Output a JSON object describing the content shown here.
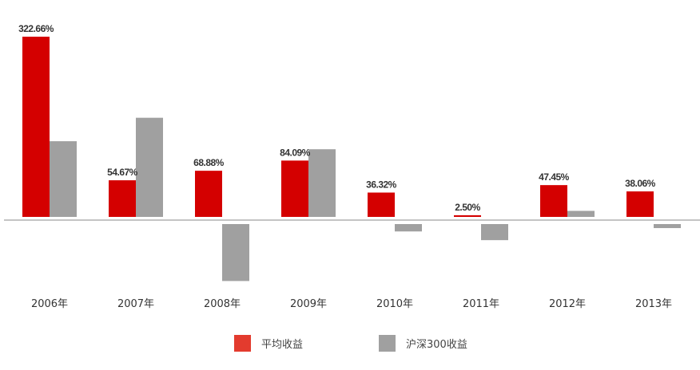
{
  "chart_data": {
    "type": "bar",
    "title": "",
    "xlabel": "",
    "ylabel": "",
    "categories": [
      "2006年",
      "2007年",
      "2008年",
      "2009年",
      "2010年",
      "2011年",
      "2012年",
      "2013年"
    ],
    "series": [
      {
        "name": "平均收益",
        "color": "#d40000",
        "legend_color": "#e33b2e",
        "values": [
          322.66,
          54.67,
          68.88,
          84.09,
          36.32,
          2.5,
          47.45,
          38.06
        ],
        "labels": [
          "322.66%",
          "54.67%",
          "68.88%",
          "84.09%",
          "36.32%",
          "2.50%",
          "47.45%",
          "38.06%"
        ]
      },
      {
        "name": "沪深300收益",
        "color": "#a0a0a0",
        "legend_color": "#a0a0a0",
        "values": [
          113,
          148,
          -85,
          101,
          -11,
          -24,
          9,
          -6
        ]
      }
    ],
    "legend_position": "bottom",
    "grid": false
  }
}
